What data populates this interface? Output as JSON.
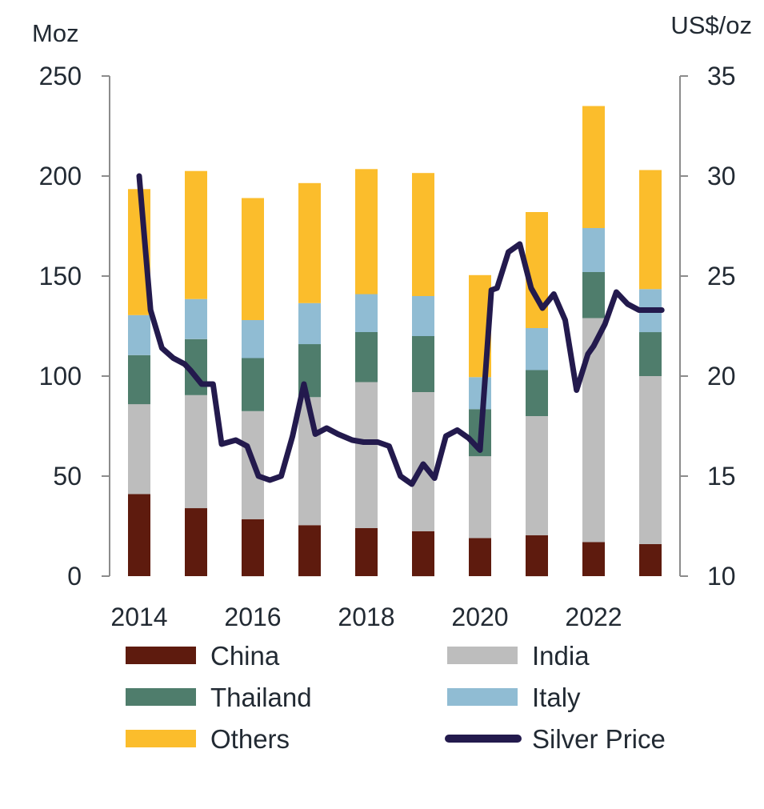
{
  "chart_data": {
    "type": "bar",
    "stacked": true,
    "title": "",
    "left_axis": {
      "unit": "Moz",
      "ylim": [
        0,
        250
      ],
      "ticks": [
        0,
        50,
        100,
        150,
        200,
        250
      ],
      "tick_labels": [
        "0",
        "50",
        "100",
        "150",
        "200",
        "250"
      ]
    },
    "right_axis": {
      "unit": "US$/oz",
      "ylim": [
        10,
        35
      ],
      "ticks": [
        10,
        15,
        20,
        25,
        30,
        35
      ],
      "tick_labels": [
        "10",
        "15",
        "20",
        "25",
        "30",
        "35"
      ]
    },
    "x_axis": {
      "range": [
        2013.6,
        2023.6
      ],
      "ticks": [
        2014,
        2016,
        2018,
        2020,
        2022
      ],
      "tick_labels": [
        "2014",
        "2016",
        "2018",
        "2020",
        "2022"
      ]
    },
    "categories": [
      "2014",
      "2015",
      "2016",
      "2017",
      "2018",
      "2019",
      "2020",
      "2021",
      "2022",
      "2023"
    ],
    "series": [
      {
        "name": "China",
        "color": "#5e1b0e",
        "values": [
          41,
          34,
          28.5,
          25.5,
          24,
          22.5,
          19,
          20.5,
          17,
          16
        ]
      },
      {
        "name": "India",
        "color": "#bdbdbd",
        "values": [
          45,
          56.5,
          54,
          64,
          73,
          69.5,
          41,
          59.5,
          112,
          84
        ]
      },
      {
        "name": "Thailand",
        "color": "#4f7d6c",
        "values": [
          24.5,
          28,
          26.5,
          26.5,
          25,
          28,
          23.5,
          23,
          23,
          22
        ]
      },
      {
        "name": "Italy",
        "color": "#90bcd3",
        "values": [
          20,
          20,
          19,
          20.5,
          19,
          20,
          16,
          21,
          22,
          21.5
        ]
      },
      {
        "name": "Others",
        "color": "#fbbd2c",
        "values": [
          63,
          64,
          61,
          60,
          62.5,
          61.5,
          51,
          58,
          61,
          59.5
        ]
      }
    ],
    "line_series": {
      "name": "Silver Price",
      "color": "#231a4d",
      "axis": "right",
      "x": [
        2014.0,
        2014.2,
        2014.4,
        2014.6,
        2014.8,
        2014.9,
        2015.1,
        2015.3,
        2015.45,
        2015.7,
        2015.9,
        2016.1,
        2016.3,
        2016.5,
        2016.7,
        2016.9,
        2017.1,
        2017.3,
        2017.5,
        2017.75,
        2017.95,
        2018.2,
        2018.4,
        2018.6,
        2018.8,
        2019.0,
        2019.2,
        2019.4,
        2019.6,
        2019.8,
        2020.0,
        2020.2,
        2020.3,
        2020.5,
        2020.7,
        2020.9,
        2021.1,
        2021.3,
        2021.5,
        2021.7,
        2021.9,
        2022.0,
        2022.2,
        2022.4,
        2022.6,
        2022.8,
        2023.0,
        2023.2
      ],
      "y": [
        30.0,
        23.3,
        21.4,
        20.9,
        20.6,
        20.3,
        19.6,
        19.6,
        16.6,
        16.8,
        16.5,
        15.0,
        14.8,
        15.0,
        17.0,
        19.6,
        17.1,
        17.4,
        17.1,
        16.8,
        16.7,
        16.7,
        16.5,
        15.0,
        14.6,
        15.6,
        14.9,
        17.0,
        17.3,
        16.9,
        16.3,
        24.3,
        24.4,
        26.2,
        26.6,
        24.4,
        23.4,
        24.1,
        22.8,
        19.3,
        21.1,
        21.5,
        22.6,
        24.2,
        23.6,
        23.3,
        23.3,
        23.3
      ],
      "note_y_values_in": "US$/oz"
    },
    "legend": {
      "position": "bottom",
      "items": [
        "China",
        "India",
        "Thailand",
        "Italy",
        "Others",
        "Silver Price"
      ]
    },
    "grid": false
  }
}
